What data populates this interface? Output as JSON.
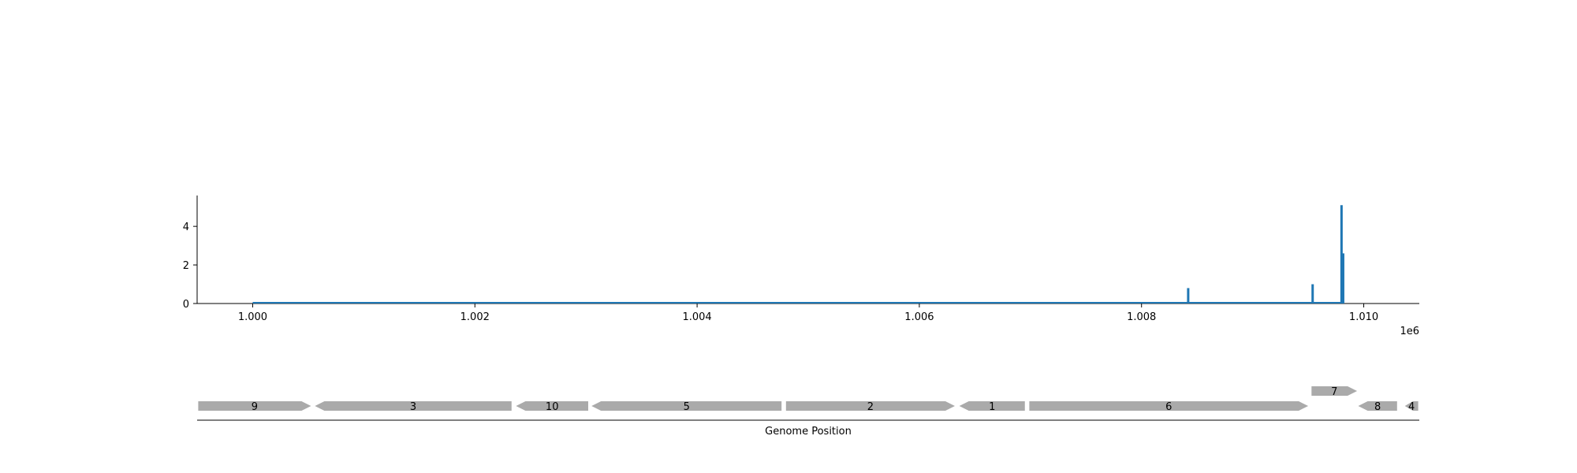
{
  "chart_data": [
    {
      "type": "bar",
      "title": "",
      "xlabel": "",
      "ylabel": "",
      "xlim": [
        999500,
        1010500
      ],
      "ylim": [
        0,
        5.6
      ],
      "x_offset_label": "1e6",
      "xtick_values": [
        1000000,
        1002000,
        1004000,
        1006000,
        1008000,
        1010000
      ],
      "xtick_labels": [
        "1.000",
        "1.002",
        "1.004",
        "1.006",
        "1.008",
        "1.010"
      ],
      "ytick_values": [
        0,
        2,
        4
      ],
      "ytick_labels": [
        "0",
        "2",
        "4"
      ],
      "baseline_range": [
        1000000,
        1009800
      ],
      "series": [
        {
          "color": "#1f77b4",
          "points": [
            {
              "x": 1008420,
              "y": 0.8
            },
            {
              "x": 1009540,
              "y": 1.0
            },
            {
              "x": 1009800,
              "y": 5.1
            },
            {
              "x": 1009815,
              "y": 2.6
            }
          ]
        }
      ],
      "grid": false,
      "legend": "none"
    },
    {
      "type": "gene-track",
      "xlabel": "Genome Position",
      "xlim": [
        999500,
        1010500
      ],
      "color": "#aaaaaa",
      "genes": [
        {
          "label": "9",
          "start": 999510,
          "end": 1000525,
          "strand": "+",
          "row": 0
        },
        {
          "label": "3",
          "start": 1000560,
          "end": 1002330,
          "strand": "-",
          "row": 0
        },
        {
          "label": "10",
          "start": 1002370,
          "end": 1003020,
          "strand": "-",
          "row": 0
        },
        {
          "label": "5",
          "start": 1003050,
          "end": 1004760,
          "strand": "-",
          "row": 0
        },
        {
          "label": "2",
          "start": 1004800,
          "end": 1006320,
          "strand": "+",
          "row": 0
        },
        {
          "label": "1",
          "start": 1006360,
          "end": 1006950,
          "strand": "-",
          "row": 0
        },
        {
          "label": "6",
          "start": 1006990,
          "end": 1009500,
          "strand": "+",
          "row": 0
        },
        {
          "label": "7",
          "start": 1009530,
          "end": 1009940,
          "strand": "+",
          "row": 1
        },
        {
          "label": "8",
          "start": 1009950,
          "end": 1010300,
          "strand": "-",
          "row": 0
        },
        {
          "label": "4",
          "start": 1010370,
          "end": 1010490,
          "strand": "-",
          "row": 0
        }
      ]
    }
  ]
}
